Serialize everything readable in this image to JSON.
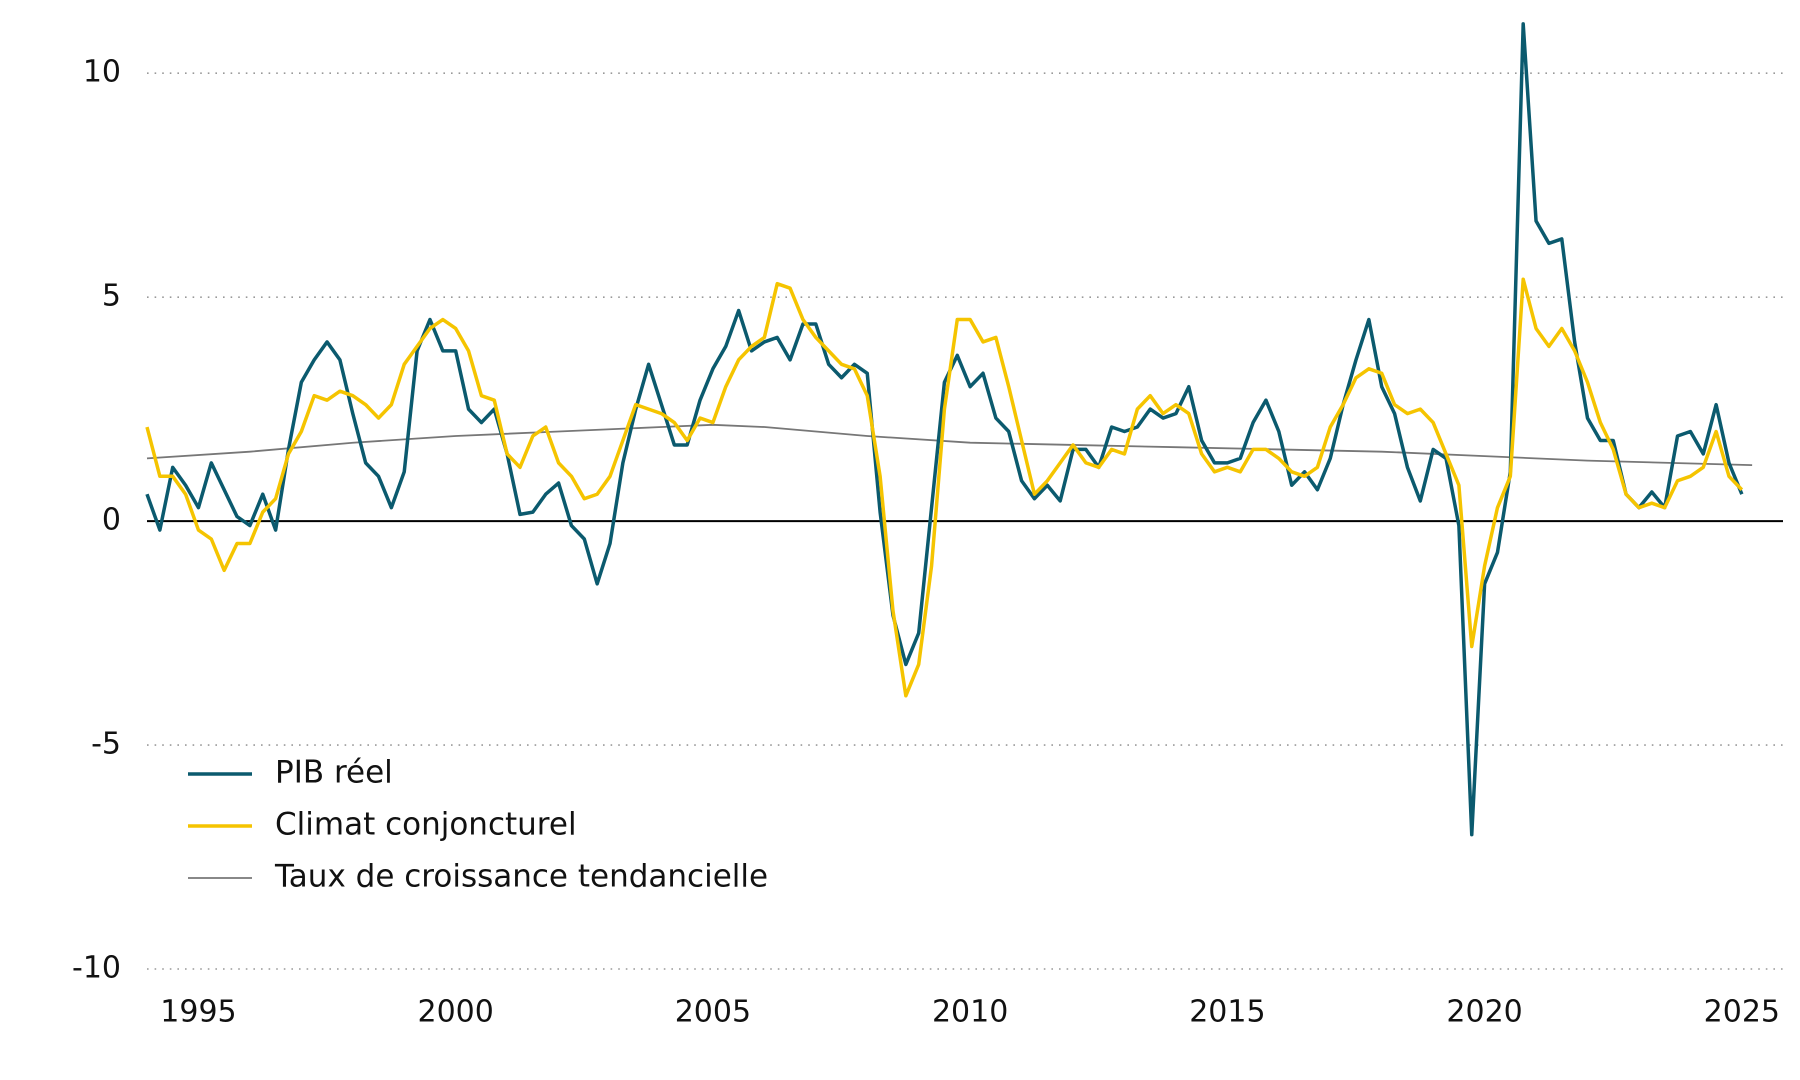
{
  "chart_data": {
    "type": "line",
    "xlim": [
      1994,
      2025.8
    ],
    "xticks": [
      1995,
      2000,
      2005,
      2010,
      2015,
      2020,
      2025
    ],
    "ylim": [
      -10,
      11.5
    ],
    "yticks": [
      -10,
      -5,
      0,
      5,
      10
    ],
    "grid": true,
    "legend": "lower left",
    "series": [
      {
        "name": "PIB réel",
        "color": "#0b5a6e",
        "width": 3.5,
        "x": [
          1994,
          1994.25,
          1994.5,
          1994.75,
          1995,
          1995.25,
          1995.5,
          1995.75,
          1996,
          1996.25,
          1996.5,
          1996.75,
          1997,
          1997.25,
          1997.5,
          1997.75,
          1998,
          1998.25,
          1998.5,
          1998.75,
          1999,
          1999.25,
          1999.5,
          1999.75,
          2000,
          2000.25,
          2000.5,
          2000.75,
          2001,
          2001.25,
          2001.5,
          2001.75,
          2002,
          2002.25,
          2002.5,
          2002.75,
          2003,
          2003.25,
          2003.5,
          2003.75,
          2004,
          2004.25,
          2004.5,
          2004.75,
          2005,
          2005.25,
          2005.5,
          2005.75,
          2006,
          2006.25,
          2006.5,
          2006.75,
          2007,
          2007.25,
          2007.5,
          2007.75,
          2008,
          2008.25,
          2008.5,
          2008.75,
          2009,
          2009.25,
          2009.5,
          2009.75,
          2010,
          2010.25,
          2010.5,
          2010.75,
          2011,
          2011.25,
          2011.5,
          2011.75,
          2012,
          2012.25,
          2012.5,
          2012.75,
          2013,
          2013.25,
          2013.5,
          2013.75,
          2014,
          2014.25,
          2014.5,
          2014.75,
          2015,
          2015.25,
          2015.5,
          2015.75,
          2016,
          2016.25,
          2016.5,
          2016.75,
          2017,
          2017.25,
          2017.5,
          2017.75,
          2018,
          2018.25,
          2018.5,
          2018.75,
          2019,
          2019.25,
          2019.5,
          2019.75,
          2020,
          2020.25,
          2020.5,
          2020.75,
          2021,
          2021.25,
          2021.5,
          2021.75,
          2022,
          2022.25,
          2022.5,
          2022.75,
          2023,
          2023.25,
          2023.5,
          2023.75,
          2024,
          2024.25,
          2024.5,
          2024.75,
          2025
        ],
        "values": [
          0.6,
          -0.2,
          1.2,
          0.8,
          0.3,
          1.3,
          0.7,
          0.1,
          -0.1,
          0.6,
          -0.2,
          1.6,
          3.1,
          3.6,
          4.0,
          3.6,
          2.4,
          1.3,
          1.0,
          0.3,
          1.1,
          3.8,
          4.5,
          3.8,
          3.8,
          2.5,
          2.2,
          2.5,
          1.5,
          0.15,
          0.2,
          0.6,
          0.85,
          -0.1,
          -0.4,
          -1.4,
          -0.5,
          1.3,
          2.5,
          3.5,
          2.6,
          1.7,
          1.7,
          2.7,
          3.4,
          3.9,
          4.7,
          3.8,
          4.0,
          4.1,
          3.6,
          4.4,
          4.4,
          3.5,
          3.2,
          3.5,
          3.3,
          0.2,
          -2.1,
          -3.2,
          -2.5,
          0.3,
          3.1,
          3.7,
          3.0,
          3.3,
          2.3,
          2.0,
          0.9,
          0.5,
          0.8,
          0.45,
          1.6,
          1.6,
          1.2,
          2.1,
          2.0,
          2.1,
          2.5,
          2.3,
          2.4,
          3.0,
          1.8,
          1.3,
          1.3,
          1.4,
          2.2,
          2.7,
          2.0,
          0.8,
          1.1,
          0.7,
          1.4,
          2.6,
          3.6,
          4.5,
          3.0,
          2.4,
          1.2,
          0.45,
          1.6,
          1.4,
          -0.1,
          -7.0,
          -1.4,
          -0.7,
          1.1,
          11.1,
          6.7,
          6.2,
          6.3,
          4.0,
          2.3,
          1.8,
          1.8,
          0.6,
          0.3,
          0.65,
          0.3,
          1.9,
          2.0,
          1.5,
          2.6,
          1.3,
          0.6
        ]
      },
      {
        "name": "Climat conjoncturel",
        "color": "#f5c400",
        "width": 3.5,
        "x": [
          1994,
          1994.25,
          1994.5,
          1994.75,
          1995,
          1995.25,
          1995.5,
          1995.75,
          1996,
          1996.25,
          1996.5,
          1996.75,
          1997,
          1997.25,
          1997.5,
          1997.75,
          1998,
          1998.25,
          1998.5,
          1998.75,
          1999,
          1999.25,
          1999.5,
          1999.75,
          2000,
          2000.25,
          2000.5,
          2000.75,
          2001,
          2001.25,
          2001.5,
          2001.75,
          2002,
          2002.25,
          2002.5,
          2002.75,
          2003,
          2003.25,
          2003.5,
          2003.75,
          2004,
          2004.25,
          2004.5,
          2004.75,
          2005,
          2005.25,
          2005.5,
          2005.75,
          2006,
          2006.25,
          2006.5,
          2006.75,
          2007,
          2007.25,
          2007.5,
          2007.75,
          2008,
          2008.25,
          2008.5,
          2008.75,
          2009,
          2009.25,
          2009.5,
          2009.75,
          2010,
          2010.25,
          2010.5,
          2010.75,
          2011,
          2011.25,
          2011.5,
          2011.75,
          2012,
          2012.25,
          2012.5,
          2012.75,
          2013,
          2013.25,
          2013.5,
          2013.75,
          2014,
          2014.25,
          2014.5,
          2014.75,
          2015,
          2015.25,
          2015.5,
          2015.75,
          2016,
          2016.25,
          2016.5,
          2016.75,
          2017,
          2017.25,
          2017.5,
          2017.75,
          2018,
          2018.25,
          2018.5,
          2018.75,
          2019,
          2019.25,
          2019.5,
          2019.75,
          2020,
          2020.25,
          2020.5,
          2020.75,
          2021,
          2021.25,
          2021.5,
          2021.75,
          2022,
          2022.25,
          2022.5,
          2022.75,
          2023,
          2023.25,
          2023.5,
          2023.75,
          2024,
          2024.25,
          2024.5,
          2024.75,
          2025
        ],
        "values": [
          2.1,
          1.0,
          1.0,
          0.6,
          -0.2,
          -0.4,
          -1.1,
          -0.5,
          -0.5,
          0.2,
          0.5,
          1.5,
          2.0,
          2.8,
          2.7,
          2.9,
          2.8,
          2.6,
          2.3,
          2.6,
          3.5,
          3.9,
          4.3,
          4.5,
          4.3,
          3.8,
          2.8,
          2.7,
          1.5,
          1.2,
          1.9,
          2.1,
          1.3,
          1.0,
          0.5,
          0.6,
          1.0,
          1.8,
          2.6,
          2.5,
          2.4,
          2.2,
          1.8,
          2.3,
          2.2,
          3.0,
          3.6,
          3.9,
          4.1,
          5.3,
          5.2,
          4.5,
          4.1,
          3.8,
          3.5,
          3.4,
          2.8,
          1.0,
          -2.0,
          -3.9,
          -3.2,
          -1.0,
          2.5,
          4.5,
          4.5,
          4.0,
          4.1,
          3.0,
          1.8,
          0.6,
          0.9,
          1.3,
          1.7,
          1.3,
          1.2,
          1.6,
          1.5,
          2.5,
          2.8,
          2.4,
          2.6,
          2.4,
          1.5,
          1.1,
          1.2,
          1.1,
          1.6,
          1.6,
          1.4,
          1.1,
          1.0,
          1.2,
          2.1,
          2.6,
          3.2,
          3.4,
          3.3,
          2.6,
          2.4,
          2.5,
          2.2,
          1.5,
          0.8,
          -2.8,
          -1.0,
          0.3,
          1.0,
          5.4,
          4.3,
          3.9,
          4.3,
          3.8,
          3.1,
          2.2,
          1.6,
          0.6,
          0.3,
          0.4,
          0.3,
          0.9,
          1.0,
          1.2,
          2.0,
          1.0,
          0.7
        ]
      },
      {
        "name": "Taux de croissance tendancielle",
        "color": "#777777",
        "width": 1.8,
        "x": [
          1994,
          1996,
          1998,
          2000,
          2002,
          2004,
          2005,
          2006,
          2008,
          2010,
          2012,
          2014,
          2016,
          2018,
          2020,
          2022,
          2025.2
        ],
        "values": [
          1.4,
          1.55,
          1.75,
          1.9,
          2.0,
          2.1,
          2.15,
          2.1,
          1.9,
          1.75,
          1.7,
          1.65,
          1.6,
          1.55,
          1.45,
          1.35,
          1.25
        ]
      }
    ]
  }
}
